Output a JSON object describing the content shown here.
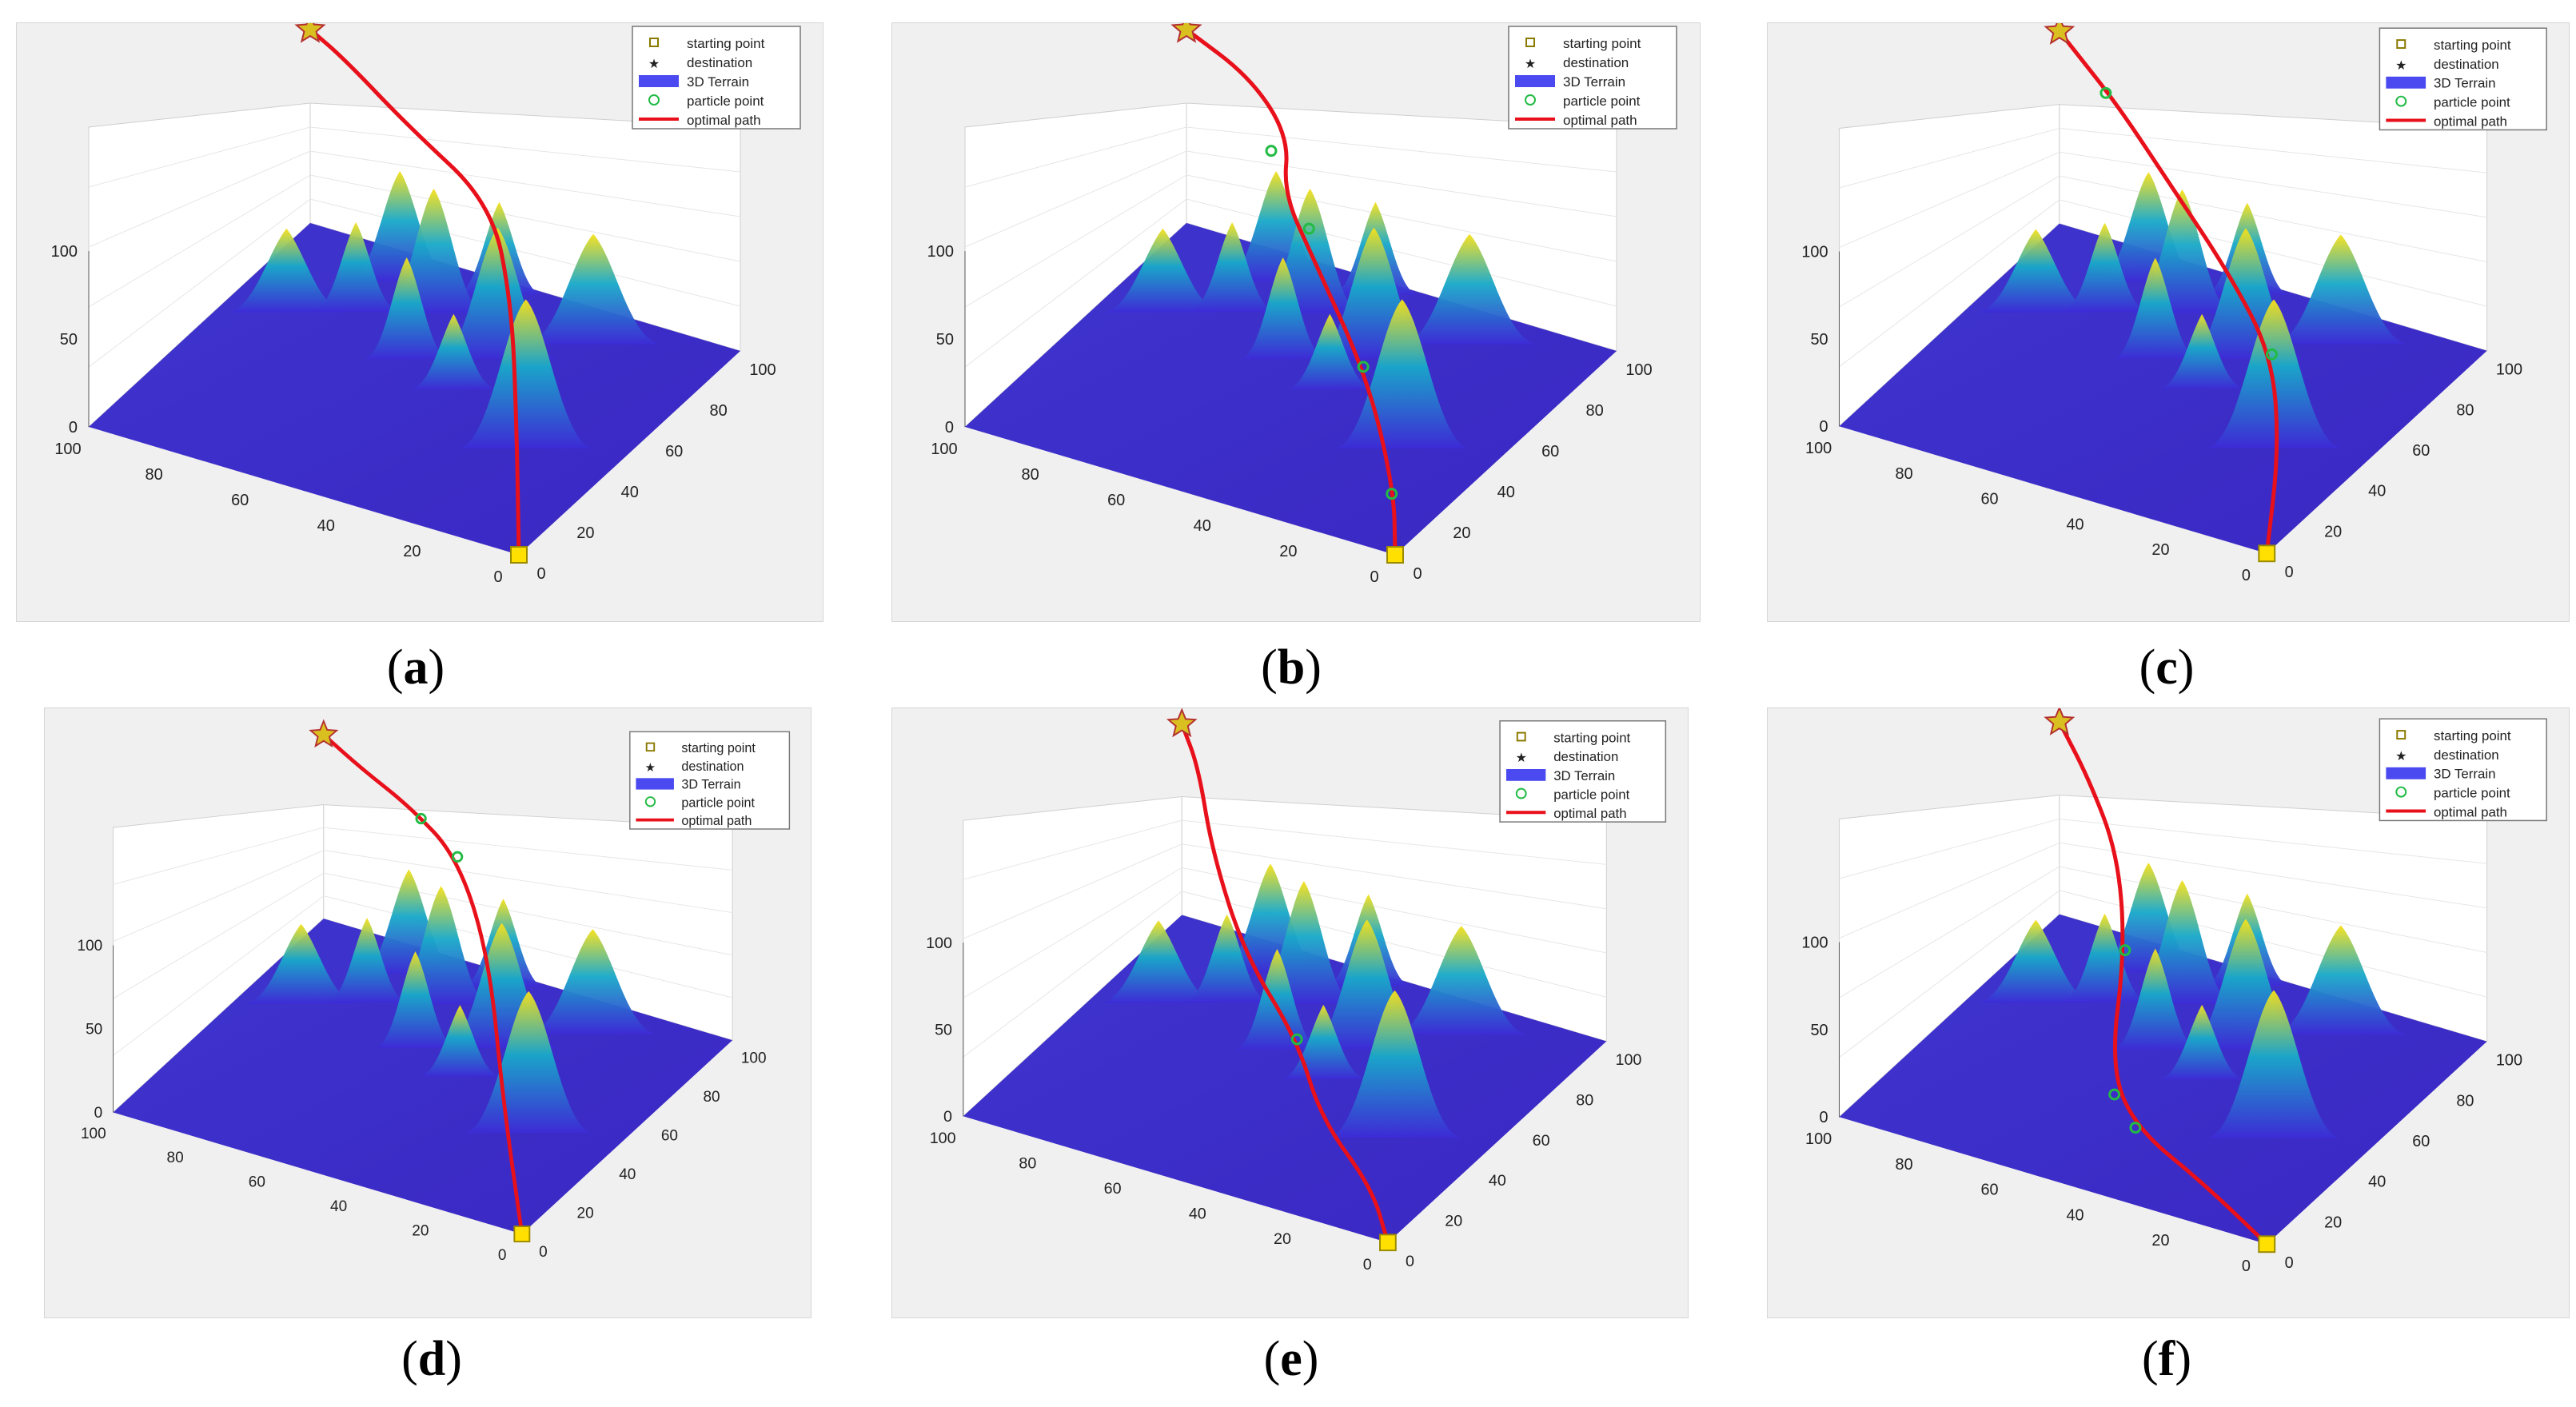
{
  "colors": {
    "panel_bg": "#f0f0f0",
    "terrain_low": "#3d2bd6",
    "terrain_mid": "#19a9c9",
    "terrain_high": "#f7e11a",
    "path": "#e8101a",
    "start_marker": "#ffe000",
    "destination_marker": "#d9c020",
    "particle": "#22bb44"
  },
  "legend": {
    "starting_point": "starting point",
    "destination": "destination",
    "terrain": "3D Terrain",
    "particle_point": "particle point",
    "optimal_path": "optimal path"
  },
  "chart_data": [
    {
      "type": "surface",
      "label": "a",
      "z_ticks": [
        "0",
        "50",
        "100"
      ],
      "y_ticks": [
        "100",
        "80",
        "60",
        "40",
        "20",
        "0"
      ],
      "x_ticks": [
        "0",
        "20",
        "40",
        "60",
        "80",
        "100"
      ],
      "start": [
        0,
        0
      ],
      "destination": [
        100,
        100
      ],
      "particles": [],
      "path": [
        [
          0,
          0
        ],
        [
          30,
          16
        ],
        [
          55,
          30
        ],
        [
          75,
          45
        ],
        [
          86,
          70
        ],
        [
          96,
          90
        ],
        [
          100,
          100
        ]
      ]
    },
    {
      "type": "surface",
      "label": "b",
      "z_ticks": [
        "0",
        "50",
        "100"
      ],
      "y_ticks": [
        "100",
        "80",
        "60",
        "40",
        "20",
        "0"
      ],
      "x_ticks": [
        "0",
        "20",
        "40",
        "60",
        "80",
        "100"
      ],
      "start": [
        0,
        0
      ],
      "destination": [
        100,
        100
      ],
      "particles": [
        [
          14,
          8
        ],
        [
          40,
          28
        ],
        [
          66,
          54
        ],
        [
          80,
          70
        ]
      ],
      "path": [
        [
          0,
          0
        ],
        [
          15,
          8
        ],
        [
          38,
          26
        ],
        [
          60,
          50
        ],
        [
          72,
          63
        ],
        [
          84,
          68
        ],
        [
          94,
          82
        ],
        [
          100,
          100
        ]
      ]
    },
    {
      "type": "surface",
      "label": "c",
      "z_ticks": [
        "0",
        "50",
        "100"
      ],
      "y_ticks": [
        "100",
        "80",
        "60",
        "40",
        "20",
        "0"
      ],
      "x_ticks": [
        "0",
        "20",
        "40",
        "60",
        "80",
        "100"
      ],
      "start": [
        0,
        0
      ],
      "destination": [
        100,
        100
      ],
      "particles": [
        [
          45,
          22
        ],
        [
          90,
          84
        ]
      ],
      "path": [
        [
          0,
          0
        ],
        [
          25,
          10
        ],
        [
          45,
          22
        ],
        [
          60,
          40
        ],
        [
          74,
          60
        ],
        [
          88,
          80
        ],
        [
          97,
          95
        ],
        [
          100,
          100
        ]
      ]
    },
    {
      "type": "surface",
      "label": "d",
      "z_ticks": [
        "0",
        "50",
        "100"
      ],
      "y_ticks": [
        "100",
        "80",
        "60",
        "40",
        "20",
        "0"
      ],
      "x_ticks": [
        "0",
        "20",
        "40",
        "60",
        "80",
        "100"
      ],
      "start": [
        0,
        0
      ],
      "destination": [
        100,
        100
      ],
      "particles": [
        [
          82,
          58
        ],
        [
          88,
          70
        ]
      ],
      "path": [
        [
          0,
          0
        ],
        [
          30,
          20
        ],
        [
          62,
          40
        ],
        [
          82,
          58
        ],
        [
          90,
          74
        ],
        [
          95,
          88
        ],
        [
          100,
          100
        ]
      ]
    },
    {
      "type": "surface",
      "label": "e",
      "z_ticks": [
        "0",
        "50",
        "100"
      ],
      "y_ticks": [
        "100",
        "80",
        "60",
        "40",
        "20",
        "0"
      ],
      "x_ticks": [
        "0",
        "20",
        "40",
        "60",
        "80",
        "100"
      ],
      "start": [
        0,
        0
      ],
      "destination": [
        100,
        100
      ],
      "particles": [
        [
          40,
          42
        ]
      ],
      "path": [
        [
          0,
          0
        ],
        [
          12,
          10
        ],
        [
          24,
          28
        ],
        [
          40,
          42
        ],
        [
          55,
          62
        ],
        [
          75,
          80
        ],
        [
          92,
          92
        ],
        [
          100,
          100
        ]
      ]
    },
    {
      "type": "surface",
      "label": "f",
      "z_ticks": [
        "0",
        "50",
        "100"
      ],
      "y_ticks": [
        "100",
        "80",
        "60",
        "40",
        "20",
        "0"
      ],
      "x_ticks": [
        "0",
        "20",
        "40",
        "60",
        "80",
        "100"
      ],
      "start": [
        0,
        0
      ],
      "destination": [
        100,
        100
      ],
      "particles": [
        [
          18,
          40
        ],
        [
          24,
          48
        ],
        [
          56,
          62
        ]
      ],
      "path": [
        [
          0,
          0
        ],
        [
          10,
          20
        ],
        [
          18,
          40
        ],
        [
          30,
          52
        ],
        [
          56,
          62
        ],
        [
          76,
          74
        ],
        [
          90,
          88
        ],
        [
          100,
          100
        ]
      ]
    }
  ]
}
